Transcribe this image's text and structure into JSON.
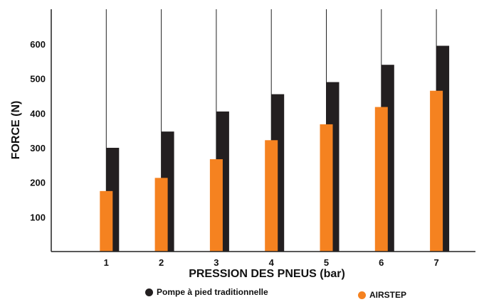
{
  "chart_data": {
    "type": "bar",
    "xlabel": "PRESSION DES PNEUS (bar)",
    "ylabel": "FORCE (N)",
    "categories": [
      "1",
      "2",
      "3",
      "4",
      "5",
      "6",
      "7"
    ],
    "yticks": [
      "100",
      "200",
      "300",
      "400",
      "500",
      "600"
    ],
    "ylim": [
      0,
      700
    ],
    "grid": true,
    "series": [
      {
        "name": "Pompe à pied traditionnelle",
        "color": "#231f20",
        "values": [
          300,
          347,
          405,
          455,
          490,
          540,
          595
        ]
      },
      {
        "name": "AIRSTEP",
        "color": "#f58220",
        "values": [
          175,
          213,
          267,
          322,
          368,
          418,
          465
        ]
      }
    ],
    "legend": {
      "placement": "bottom"
    }
  }
}
